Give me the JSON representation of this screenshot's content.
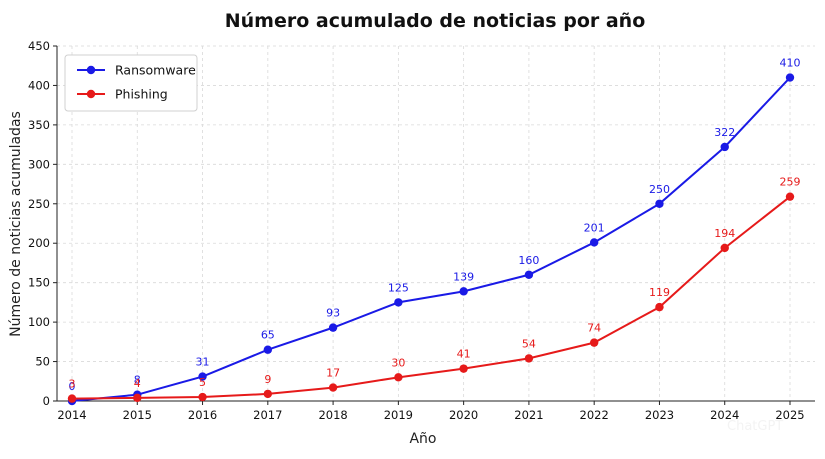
{
  "chart_data": {
    "type": "line",
    "title": "Número acumulado de noticias por año",
    "xlabel": "Año",
    "ylabel": "Número de noticias acumuladas",
    "categories": [
      "2014",
      "2015",
      "2016",
      "2017",
      "2018",
      "2019",
      "2020",
      "2021",
      "2022",
      "2023",
      "2024",
      "2025"
    ],
    "ylim": [
      0,
      450
    ],
    "yticks": [
      0,
      50,
      100,
      150,
      200,
      250,
      300,
      350,
      400,
      450
    ],
    "grid": true,
    "legend_position": "top-left",
    "series": [
      {
        "name": "Ransomware",
        "color": "#1a1ae6",
        "values": [
          0,
          8,
          31,
          65,
          93,
          125,
          139,
          160,
          201,
          250,
          322,
          410
        ],
        "labels": [
          "0",
          "8",
          "31",
          "65",
          "93",
          "125",
          "139",
          "160",
          "201",
          "250",
          "322",
          "410"
        ]
      },
      {
        "name": "Phishing",
        "color": "#e61a1a",
        "values": [
          3,
          4,
          5,
          9,
          17,
          30,
          41,
          54,
          74,
          119,
          194,
          259
        ],
        "labels": [
          "3",
          "4",
          "5",
          "9",
          "17",
          "30",
          "41",
          "54",
          "74",
          "119",
          "194",
          "259"
        ]
      }
    ]
  },
  "watermark": "ChatGPT"
}
